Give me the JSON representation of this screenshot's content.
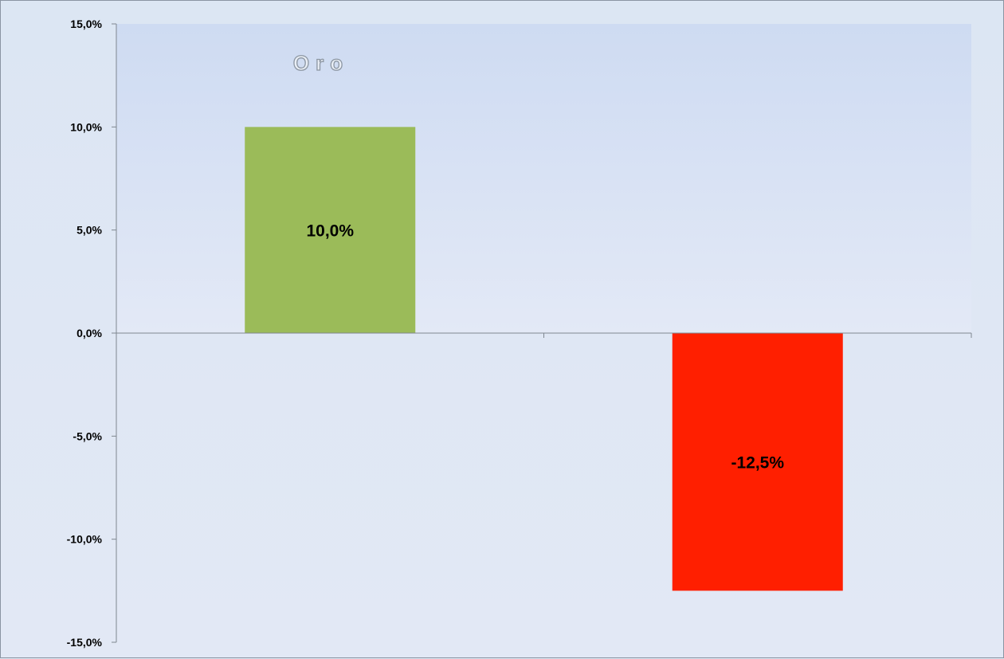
{
  "chart_data": {
    "type": "bar",
    "title": "Oro",
    "categories": [
      "",
      ""
    ],
    "values": [
      10.0,
      -12.5
    ],
    "data_labels": [
      "10,0%",
      "-12,5%"
    ],
    "bar_colors": [
      "#9bbb59",
      "#ff1f00"
    ],
    "ylim": [
      -15,
      15
    ],
    "yticks": [
      15,
      10,
      5,
      0,
      -5,
      -10,
      -15
    ],
    "ytick_labels": [
      "15,0%",
      "10,0%",
      "5,0%",
      "0,0%",
      "-5,0%",
      "-10,0%",
      "-15,0%"
    ],
    "grid": false,
    "legend": "none",
    "plot_fill_color": "#cfdcf2"
  }
}
